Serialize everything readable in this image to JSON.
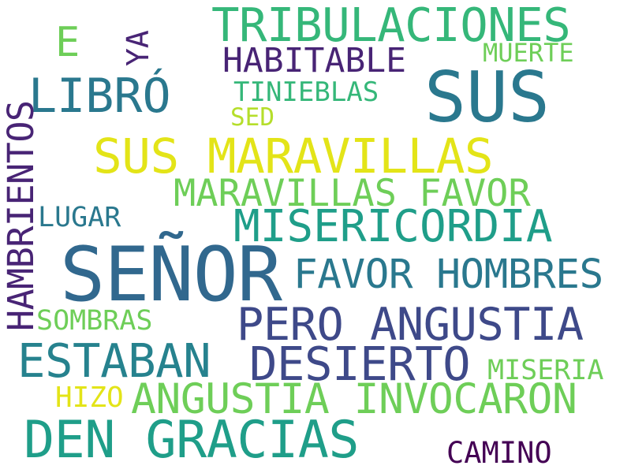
{
  "words": [
    {
      "text": "TRIBULACIONES",
      "color": "#35b779"
    },
    {
      "text": "E",
      "color": "#6ece58"
    },
    {
      "text": "YA",
      "color": "#482475"
    },
    {
      "text": "HABITABLE",
      "color": "#482475"
    },
    {
      "text": "MUERTE",
      "color": "#6ece58"
    },
    {
      "text": "SUS",
      "color": "#2a788e"
    },
    {
      "text": "LIBRÓ",
      "color": "#2a788e"
    },
    {
      "text": "TINIEBLAS",
      "color": "#35b779"
    },
    {
      "text": "SED",
      "color": "#b5de2b"
    },
    {
      "text": "HAMBRIENTOS",
      "color": "#482475"
    },
    {
      "text": "SUS MARAVILLAS",
      "color": "#e3e418"
    },
    {
      "text": "MARAVILLAS FAVOR",
      "color": "#6ece58"
    },
    {
      "text": "LUGAR",
      "color": "#2a788e"
    },
    {
      "text": "MISERICORDIA",
      "color": "#1f9e89"
    },
    {
      "text": "SEÑOR",
      "color": "#31688e"
    },
    {
      "text": "FAVOR HOMBRES",
      "color": "#2a788e"
    },
    {
      "text": "SOMBRAS",
      "color": "#6ece58"
    },
    {
      "text": "PERO ANGUSTIA",
      "color": "#3e4989"
    },
    {
      "text": "ESTABAN",
      "color": "#26828e"
    },
    {
      "text": "DESIERTO",
      "color": "#3e4989"
    },
    {
      "text": "MISERIA",
      "color": "#6ece58"
    },
    {
      "text": "HIZO",
      "color": "#e3e418"
    },
    {
      "text": "ANGUSTIA INVOCARON",
      "color": "#6ece58"
    },
    {
      "text": "DEN GRACIAS",
      "color": "#1f9e89"
    },
    {
      "text": "CAMINO",
      "color": "#440154"
    }
  ]
}
